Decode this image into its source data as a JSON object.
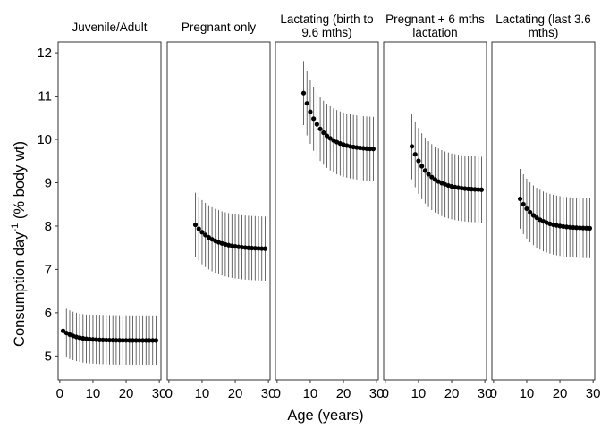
{
  "chart_data": {
    "type": "scatter",
    "xlabel": "Age (years)",
    "ylabel_main": "Consumption day",
    "ylabel_sup": "-1",
    "ylabel_rest": " (% body wt)",
    "xlim": [
      -0.5,
      30.5
    ],
    "ylim": [
      4.45,
      12.25
    ],
    "x_ticks": [
      0,
      10,
      20,
      30
    ],
    "y_ticks": [
      5,
      6,
      7,
      8,
      9,
      10,
      11,
      12
    ],
    "grid": false,
    "error_bars": true,
    "panels": [
      {
        "title_lines": [
          "Juvenile/Adult"
        ],
        "x_start": 1,
        "x_end": 29,
        "start_value": 5.58,
        "end_value": 5.36,
        "decay_rate": 0.25,
        "min_value": 5.34,
        "error_half_width": 0.56
      },
      {
        "title_lines": [
          "Pregnant only"
        ],
        "x_start": 8,
        "x_end": 29,
        "start_value": 8.03,
        "end_value": 7.48,
        "decay_rate": 0.18,
        "error_half_width": 0.74
      },
      {
        "title_lines": [
          "Lactating (birth to",
          "9.6 mths)"
        ],
        "x_start": 8,
        "x_end": 29,
        "start_value": 11.07,
        "end_value": 9.78,
        "decay_rate": 0.2,
        "error_half_width": 0.74
      },
      {
        "title_lines": [
          "Pregnant + 6 mths",
          "lactation"
        ],
        "x_start": 8,
        "x_end": 29,
        "start_value": 9.84,
        "end_value": 8.84,
        "decay_rate": 0.2,
        "error_half_width": 0.76
      },
      {
        "title_lines": [
          "Lactating (last 3.6",
          "mths)"
        ],
        "x_start": 8,
        "x_end": 29,
        "start_value": 8.63,
        "end_value": 7.95,
        "decay_rate": 0.2,
        "error_half_width": 0.69
      }
    ]
  }
}
